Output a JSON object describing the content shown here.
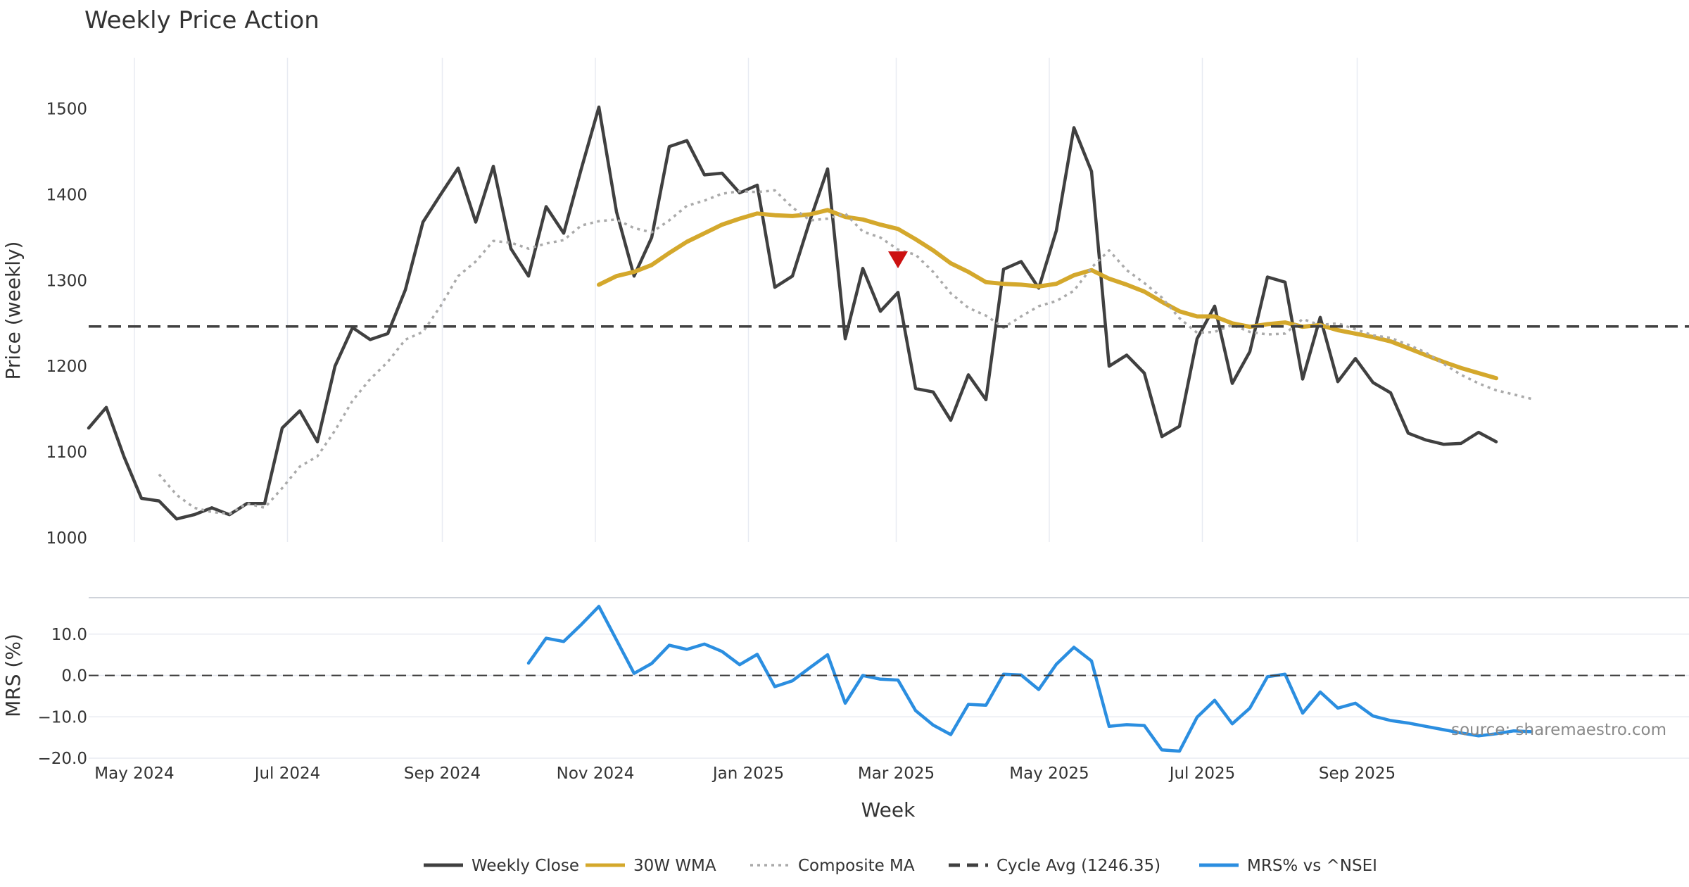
{
  "chart_data": {
    "type": "line",
    "title": "Weekly Price Action",
    "xlabel": "Week",
    "source_note": "source: sharemaestro.com",
    "x_tick_labels": [
      "May 2024",
      "Jul 2024",
      "Sep 2024",
      "Nov 2024",
      "Jan 2025",
      "Mar 2025",
      "May 2025",
      "Jul 2025",
      "Sep 2025"
    ],
    "x_tick_weeks": [
      2.6,
      11.3,
      20.1,
      28.8,
      37.5,
      45.9,
      54.6,
      63.3,
      72.1
    ],
    "week_count": 80,
    "panels": [
      {
        "name": "price",
        "ylabel": "Price (weekly)",
        "ylim": [
          1000,
          1530
        ],
        "yticks": [
          "1000",
          "1100",
          "1200",
          "1300",
          "1400",
          "1500"
        ],
        "grid": true,
        "series": [
          {
            "name": "Weekly Close",
            "color": "#404040",
            "style": "solid",
            "start_week": 0,
            "values": [
              1128,
              1152,
              1095,
              1046,
              1043,
              1022,
              1027,
              1035,
              1027,
              1040,
              1040,
              1128,
              1148,
              1112,
              1200,
              1245,
              1231,
              1238,
              1289,
              1368,
              1400,
              1431,
              1368,
              1433,
              1337,
              1305,
              1386,
              1355,
              1430,
              1502,
              1380,
              1305,
              1350,
              1456,
              1463,
              1423,
              1425,
              1402,
              1411,
              1292,
              1305,
              1370,
              1430,
              1232,
              1314,
              1264,
              1286,
              1174,
              1170,
              1137,
              1190,
              1161,
              1313,
              1322,
              1291,
              1358,
              1478,
              1427,
              1200,
              1213,
              1192,
              1118,
              1130,
              1232,
              1270,
              1180,
              1217,
              1304,
              1298,
              1185,
              1257,
              1182,
              1209,
              1181,
              1169,
              1122,
              1114,
              1109,
              1110,
              1123,
              1112
            ]
          },
          {
            "name": "30W WMA",
            "color": "#d4a82c",
            "style": "solid",
            "start_week": 29,
            "values": [
              1295,
              1305,
              1310,
              1318,
              1332,
              1345,
              1355,
              1365,
              1372,
              1378,
              1376,
              1375,
              1377,
              1382,
              1374,
              1371,
              1365,
              1360,
              1348,
              1335,
              1320,
              1310,
              1298,
              1296,
              1295,
              1293,
              1296,
              1306,
              1312,
              1302,
              1295,
              1287,
              1275,
              1264,
              1258,
              1258,
              1250,
              1246,
              1249,
              1251,
              1246,
              1248,
              1242,
              1238,
              1234,
              1229,
              1221,
              1213,
              1205,
              1198,
              1192,
              1186
            ]
          },
          {
            "name": "Composite MA",
            "color": "#aaaaaa",
            "style": "dotted",
            "start_week": 4,
            "values": [
              1074,
              1050,
              1035,
              1030,
              1028,
              1040,
              1035,
              1058,
              1083,
              1095,
              1125,
              1160,
              1185,
              1205,
              1231,
              1240,
              1270,
              1305,
              1322,
              1346,
              1344,
              1337,
              1343,
              1347,
              1364,
              1369,
              1371,
              1361,
              1356,
              1370,
              1387,
              1393,
              1401,
              1404,
              1403,
              1405,
              1385,
              1370,
              1372,
              1378,
              1357,
              1350,
              1336,
              1330,
              1310,
              1285,
              1268,
              1259,
              1245,
              1258,
              1270,
              1276,
              1288,
              1315,
              1335,
              1312,
              1297,
              1280,
              1256,
              1239,
              1240,
              1248,
              1240,
              1237,
              1238,
              1255,
              1248,
              1250,
              1243,
              1236,
              1233,
              1225,
              1216,
              1203,
              1190,
              1180,
              1172,
              1167,
              1162
            ]
          },
          {
            "name": "Cycle Avg (1246.35)",
            "color": "#404040",
            "style": "dashed",
            "constant": 1246.35
          }
        ],
        "markers": [
          {
            "week": 46,
            "value": 1324,
            "shape": "triangle-down",
            "color": "#cc1111"
          }
        ]
      },
      {
        "name": "mrs",
        "ylabel": "MRS (%)",
        "ylim": [
          -20,
          20
        ],
        "yticks": [
          "−20.0",
          "−10.0",
          "0.0",
          "10.0"
        ],
        "grid": true,
        "series": [
          {
            "name": "MRS% vs ^NSEI",
            "color": "#2b8ee0",
            "style": "solid",
            "start_week": 25,
            "values": [
              3.0,
              9.0,
              8.2,
              12.3,
              16.7,
              8.6,
              0.5,
              2.9,
              7.3,
              6.3,
              7.6,
              5.8,
              2.6,
              5.1,
              -2.7,
              -1.3,
              1.9,
              5.0,
              -6.7,
              0,
              -0.9,
              -1.1,
              -8.5,
              -12.0,
              -14.3,
              -7.0,
              -7.2,
              0.3,
              0.1,
              -3.4,
              2.7,
              6.8,
              3.5,
              -12.3,
              -11.9,
              -12.1,
              -18.0,
              -18.3,
              -10.1,
              -6.0,
              -11.7,
              -7.9,
              -0.3,
              0.3,
              -9.1,
              -4.0,
              -7.9,
              -6.7,
              -9.8,
              -10.9,
              -11.5,
              -12.3,
              -13.1,
              -13.9,
              -14.6,
              -14.1,
              -13.4,
              -13.6
            ]
          },
          {
            "name": "zero",
            "color": "#404040",
            "style": "dashed",
            "constant": 0
          }
        ]
      }
    ],
    "legend": {
      "placement": "bottom-center",
      "entries": [
        {
          "label": "Weekly Close",
          "color": "#404040",
          "style": "solid"
        },
        {
          "label": "30W WMA",
          "color": "#d4a82c",
          "style": "solid"
        },
        {
          "label": "Composite MA",
          "color": "#aaaaaa",
          "style": "dotted"
        },
        {
          "label": "Cycle Avg (1246.35)",
          "color": "#404040",
          "style": "dashed"
        },
        {
          "label": "MRS% vs ^NSEI",
          "color": "#2b8ee0",
          "style": "solid"
        }
      ]
    }
  }
}
